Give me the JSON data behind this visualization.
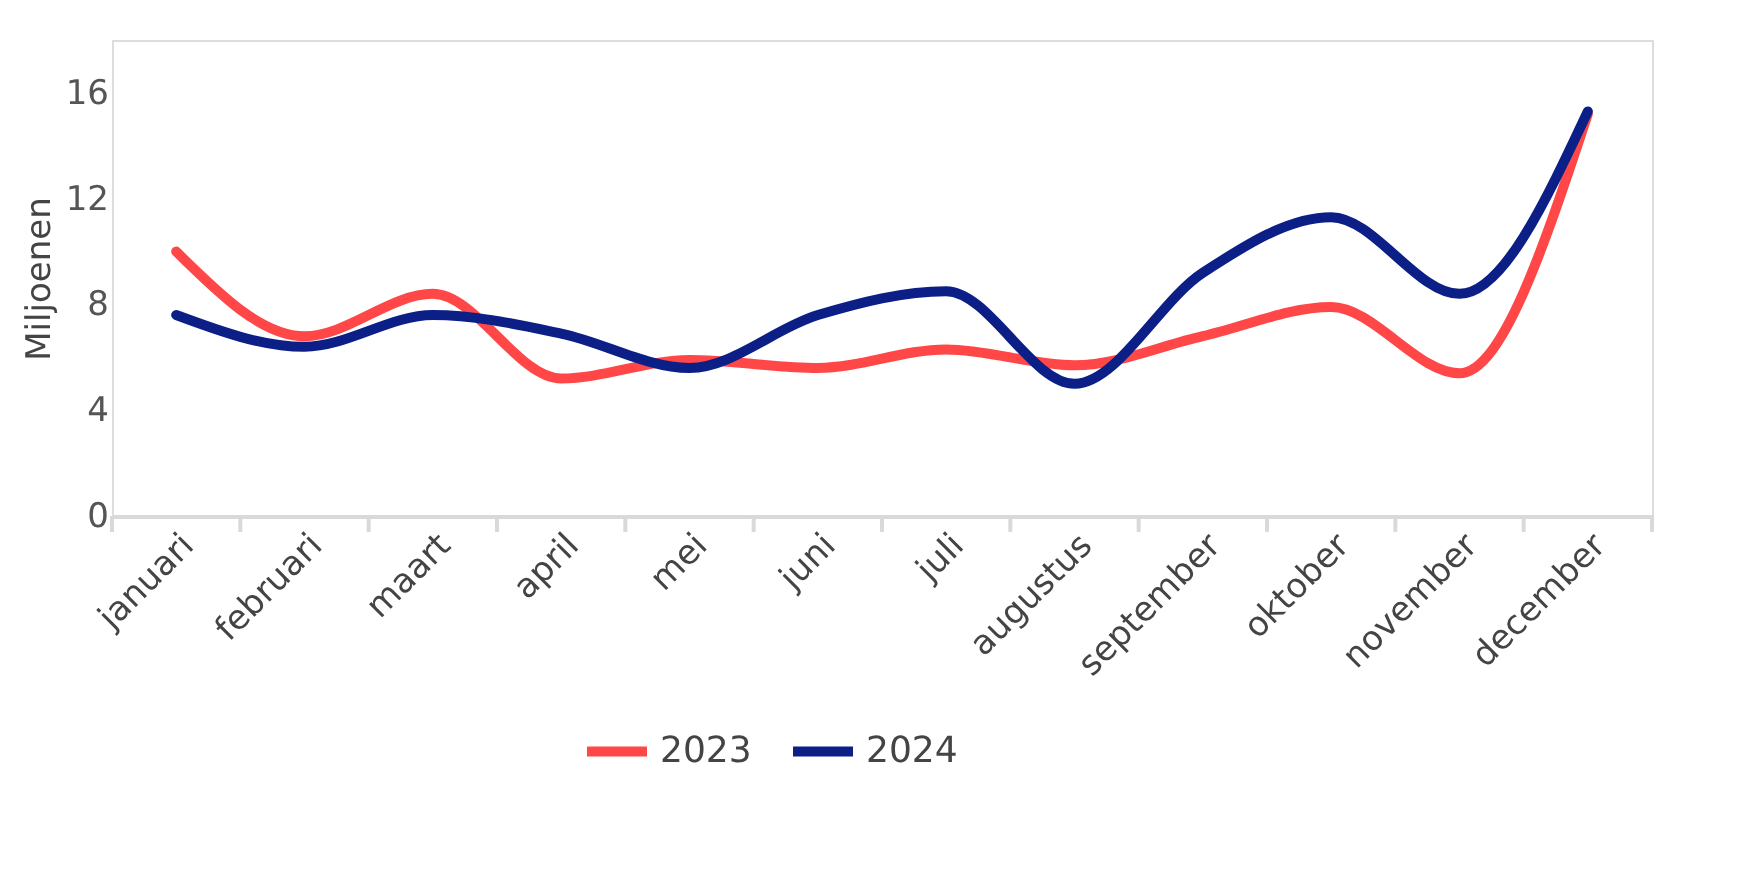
{
  "chart_data": {
    "type": "line",
    "ylabel": "Miljoenen",
    "categories": [
      "januari",
      "februari",
      "maart",
      "april",
      "mei",
      "juni",
      "juli",
      "augustus",
      "september",
      "oktober",
      "november",
      "december"
    ],
    "series": [
      {
        "name": "2023",
        "color": "#ff4747",
        "values": [
          10.0,
          6.8,
          8.4,
          5.2,
          5.9,
          5.6,
          6.3,
          5.7,
          6.8,
          7.9,
          5.4,
          15.2
        ]
      },
      {
        "name": "2024",
        "color": "#0c1f86",
        "values": [
          7.6,
          6.4,
          7.6,
          6.9,
          5.6,
          7.6,
          8.5,
          5.0,
          9.2,
          11.3,
          8.4,
          15.3
        ]
      }
    ],
    "ylim": [
      0,
      18
    ],
    "yticks": [
      0,
      4,
      8,
      12,
      16
    ],
    "grid": false,
    "legend": "bottom",
    "marker": "none",
    "line_style": "solid"
  }
}
